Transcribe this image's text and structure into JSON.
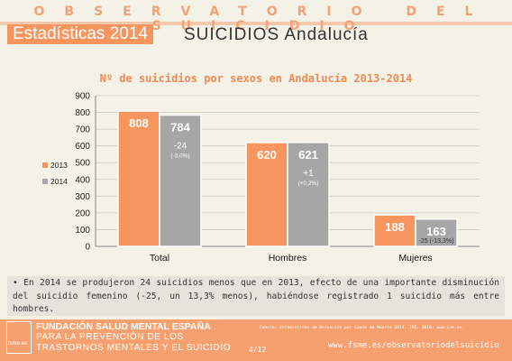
{
  "header": {
    "title": "OBSERVATORIO DEL SUICIDIO",
    "badge": "Estadísticas 2014",
    "subtitle": "SUICIDIOS Andalucía"
  },
  "colors": {
    "series_2013": "#f7955e",
    "series_2014": "#a6a6a6",
    "accent": "#f08a55",
    "background": "#f4f1e6"
  },
  "chart_data": {
    "type": "bar",
    "title": "Nº de suicidios por sexos en Andalucía 2013-2014",
    "categories": [
      "Total",
      "Hombres",
      "Mujeres"
    ],
    "series": [
      {
        "name": "2013",
        "values": [
          808,
          620,
          188
        ]
      },
      {
        "name": "2014",
        "values": [
          784,
          621,
          163
        ]
      }
    ],
    "data_labels": {
      "2013": [
        "808",
        "620",
        "188"
      ],
      "2014": [
        "784",
        "621",
        "163"
      ]
    },
    "change_labels": [
      {
        "main": "-24",
        "sub": "(-3,0%)"
      },
      {
        "main": "+1",
        "sub": "(+0,2%)"
      },
      {
        "main": "-25 (-13,3%)",
        "sub": ""
      }
    ],
    "y_ticks": [
      "0",
      "100",
      "200",
      "300",
      "400",
      "500",
      "600",
      "700",
      "800",
      "900"
    ],
    "ylim": [
      0,
      900
    ],
    "grid": true,
    "legend_position": "left",
    "xlabel": "",
    "ylabel": ""
  },
  "note": {
    "bullet": "•",
    "text": "En 2014 se produjeron 24 suicidios menos que en 2013, efecto de una importante disminución del suicidio femenino (-25, un 13,3% menos), habiéndose registrado 1 suicidio más entre hombres."
  },
  "footer": {
    "org": "FUNDACIÓN SALUD MENTAL ESPAÑA",
    "tagline_1": "PARA LA PREVENCIÓN DE LOS",
    "tagline_2": "TRASTORNOS MENTALES Y EL SUICIDIO",
    "logo_text": "fsme.es",
    "source": "Fuente: Estadísticas de Defunción por Causa de Muerte 2014. INE, 2016: www.ine.es.",
    "page": "4/12",
    "url": "www.fsme.es/observatoriodelsuicidio"
  }
}
